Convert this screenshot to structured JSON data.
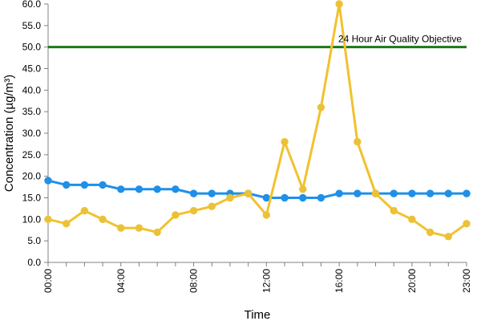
{
  "chart_data": {
    "type": "line",
    "title": "",
    "xlabel": "Time",
    "ylabel": "Concentration (µg/m³)",
    "ylim": [
      0,
      60
    ],
    "y_ticks": [
      "0.0",
      "5.0",
      "10.0",
      "15.0",
      "20.0",
      "25.0",
      "30.0",
      "35.0",
      "40.0",
      "45.0",
      "50.0",
      "55.0",
      "60.0"
    ],
    "x_tick_labels": [
      "00:00",
      "04:00",
      "08:00",
      "12:00",
      "16:00",
      "20:00",
      "23:00"
    ],
    "x_hours": [
      0,
      1,
      2,
      3,
      4,
      5,
      6,
      7,
      8,
      9,
      10,
      11,
      12,
      13,
      14,
      15,
      16,
      17,
      18,
      19,
      20,
      21,
      22,
      23
    ],
    "grid": false,
    "legend": "none",
    "series": [
      {
        "color": "#1e90e8",
        "marker_color": "#1e90e8",
        "values": [
          19,
          18,
          18,
          18,
          17,
          17,
          17,
          17,
          16,
          16,
          16,
          16,
          15,
          15,
          15,
          15,
          16,
          16,
          16,
          16,
          16,
          16,
          16,
          16
        ]
      },
      {
        "color": "#f2c12e",
        "marker_color": "#e8c23a",
        "values": [
          10,
          9,
          12,
          10,
          8,
          8,
          7,
          11,
          12,
          13,
          15,
          16,
          11,
          28,
          17,
          36,
          60,
          28,
          16,
          12,
          10,
          7,
          6,
          9
        ]
      }
    ],
    "reference_line": {
      "label": "24 Hour Air Quality Objective",
      "value": 50,
      "color": "#1a7a1a"
    }
  }
}
